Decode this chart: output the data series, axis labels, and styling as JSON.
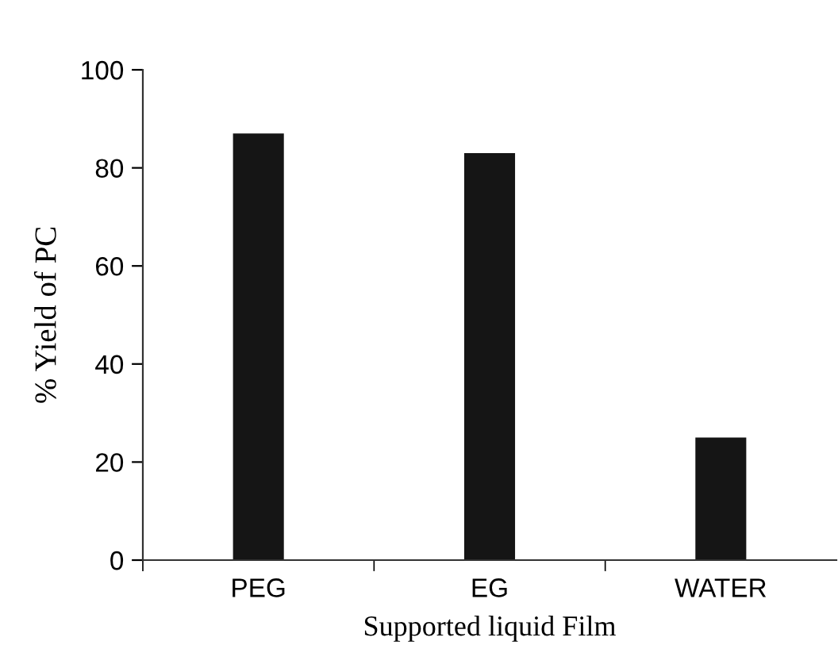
{
  "chart_data": {
    "type": "bar",
    "xlabel": "Supported liquid Film",
    "ylabel": "% Yield of PC",
    "categories": [
      "PEG",
      "EG",
      "WATER"
    ],
    "values": [
      87,
      83,
      25
    ],
    "color": "#151515",
    "ylim": [
      0,
      100
    ],
    "yticks": [
      0,
      20,
      40,
      60,
      80,
      100
    ],
    "grid": false,
    "legend": false
  }
}
